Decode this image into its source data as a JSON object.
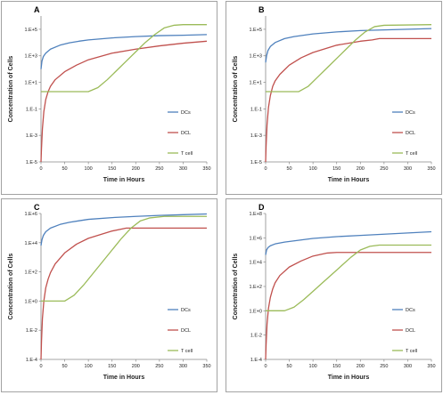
{
  "chart_data": [
    {
      "type": "line",
      "panel": "A",
      "xlabel": "Time in Hours",
      "ylabel": "Concentration of Cells",
      "y_scale": "log",
      "xlim": [
        0,
        350
      ],
      "ylim_exp": [
        -5,
        6
      ],
      "x_ticks": [
        "0",
        "50",
        "100",
        "150",
        "200",
        "250",
        "300",
        "350"
      ],
      "y_ticks": [
        "1.E-5",
        "1.E-3",
        "1.E-1",
        "1.E+1",
        "1.E+3",
        "1.E+5"
      ],
      "legend_position": "right",
      "series": [
        {
          "name": "DCs",
          "color": "#4f81bd",
          "points": [
            [
              0,
              2
            ],
            [
              2,
              2.6
            ],
            [
              5,
              2.95
            ],
            [
              10,
              3.2
            ],
            [
              20,
              3.5
            ],
            [
              40,
              3.8
            ],
            [
              60,
              3.98
            ],
            [
              80,
              4.1
            ],
            [
              100,
              4.2
            ],
            [
              150,
              4.35
            ],
            [
              200,
              4.45
            ],
            [
              250,
              4.52
            ],
            [
              300,
              4.55
            ],
            [
              350,
              4.6
            ]
          ]
        },
        {
          "name": "DCL",
          "color": "#c0504d",
          "points": [
            [
              0,
              -5
            ],
            [
              1,
              -4
            ],
            [
              3,
              -2.5
            ],
            [
              6,
              -1.2
            ],
            [
              10,
              -0.3
            ],
            [
              15,
              0.3
            ],
            [
              20,
              0.7
            ],
            [
              30,
              1.2
            ],
            [
              50,
              1.8
            ],
            [
              75,
              2.3
            ],
            [
              100,
              2.7
            ],
            [
              150,
              3.2
            ],
            [
              200,
              3.5
            ],
            [
              250,
              3.75
            ],
            [
              300,
              3.95
            ],
            [
              350,
              4.1
            ]
          ]
        },
        {
          "name": "T cell",
          "color": "#9bbb59",
          "points": [
            [
              0,
              0.3
            ],
            [
              100,
              0.3
            ],
            [
              120,
              0.6
            ],
            [
              140,
              1.2
            ],
            [
              160,
              1.9
            ],
            [
              180,
              2.6
            ],
            [
              200,
              3.3
            ],
            [
              220,
              4.0
            ],
            [
              240,
              4.6
            ],
            [
              260,
              5.1
            ],
            [
              280,
              5.3
            ],
            [
              300,
              5.35
            ],
            [
              350,
              5.35
            ]
          ]
        }
      ]
    },
    {
      "type": "line",
      "panel": "B",
      "xlabel": "Time in Hours",
      "ylabel": "Concentration of Cells",
      "y_scale": "log",
      "xlim": [
        0,
        350
      ],
      "ylim_exp": [
        -5,
        6
      ],
      "x_ticks": [
        "0",
        "50",
        "100",
        "150",
        "200",
        "250",
        "300",
        "350"
      ],
      "y_ticks": [
        "1.E-5",
        "1.E-3",
        "1.E-1",
        "1.E+1",
        "1.E+3",
        "1.E+5"
      ],
      "legend_position": "right",
      "series": [
        {
          "name": "DCs",
          "color": "#4f81bd",
          "points": [
            [
              0,
              2.5
            ],
            [
              2,
              3
            ],
            [
              5,
              3.4
            ],
            [
              10,
              3.7
            ],
            [
              20,
              4
            ],
            [
              40,
              4.3
            ],
            [
              60,
              4.45
            ],
            [
              80,
              4.55
            ],
            [
              100,
              4.65
            ],
            [
              150,
              4.8
            ],
            [
              200,
              4.9
            ],
            [
              250,
              4.95
            ],
            [
              300,
              5.0
            ],
            [
              350,
              5.05
            ]
          ]
        },
        {
          "name": "DCL",
          "color": "#c0504d",
          "points": [
            [
              0,
              -5
            ],
            [
              1,
              -3.8
            ],
            [
              3,
              -2.2
            ],
            [
              6,
              -0.9
            ],
            [
              10,
              0
            ],
            [
              15,
              0.7
            ],
            [
              20,
              1.1
            ],
            [
              30,
              1.6
            ],
            [
              50,
              2.3
            ],
            [
              75,
              2.85
            ],
            [
              100,
              3.25
            ],
            [
              150,
              3.8
            ],
            [
              200,
              4.1
            ],
            [
              225,
              4.2
            ],
            [
              240,
              4.3
            ],
            [
              350,
              4.3
            ]
          ]
        },
        {
          "name": "T cell",
          "color": "#9bbb59",
          "points": [
            [
              0,
              0.3
            ],
            [
              70,
              0.3
            ],
            [
              90,
              0.7
            ],
            [
              110,
              1.4
            ],
            [
              130,
              2.1
            ],
            [
              150,
              2.8
            ],
            [
              170,
              3.5
            ],
            [
              190,
              4.2
            ],
            [
              210,
              4.8
            ],
            [
              230,
              5.2
            ],
            [
              250,
              5.3
            ],
            [
              350,
              5.35
            ]
          ]
        }
      ]
    },
    {
      "type": "line",
      "panel": "C",
      "xlabel": "Time in Hours",
      "ylabel": "Concentration of Cells",
      "y_scale": "log",
      "xlim": [
        0,
        350
      ],
      "ylim_exp": [
        -4,
        6
      ],
      "x_ticks": [
        "0",
        "50",
        "100",
        "150",
        "200",
        "250",
        "300",
        "350"
      ],
      "y_ticks": [
        "1.E-4",
        "1.E-2",
        "1.E+0",
        "1.E+2",
        "1.E+4",
        "1.E+6"
      ],
      "legend_position": "right",
      "series": [
        {
          "name": "DCs",
          "color": "#4f81bd",
          "points": [
            [
              0,
              3.8
            ],
            [
              2,
              4.2
            ],
            [
              5,
              4.5
            ],
            [
              10,
              4.75
            ],
            [
              20,
              5
            ],
            [
              40,
              5.25
            ],
            [
              60,
              5.4
            ],
            [
              80,
              5.5
            ],
            [
              100,
              5.6
            ],
            [
              150,
              5.72
            ],
            [
              200,
              5.8
            ],
            [
              250,
              5.87
            ],
            [
              300,
              5.92
            ],
            [
              350,
              5.97
            ]
          ]
        },
        {
          "name": "DCL",
          "color": "#c0504d",
          "points": [
            [
              0,
              -4
            ],
            [
              1,
              -2.8
            ],
            [
              3,
              -1.2
            ],
            [
              6,
              0
            ],
            [
              10,
              0.9
            ],
            [
              15,
              1.5
            ],
            [
              20,
              1.95
            ],
            [
              30,
              2.55
            ],
            [
              50,
              3.3
            ],
            [
              75,
              3.9
            ],
            [
              100,
              4.3
            ],
            [
              150,
              4.8
            ],
            [
              180,
              5.0
            ],
            [
              200,
              5.0
            ],
            [
              350,
              5.0
            ]
          ]
        },
        {
          "name": "T cell",
          "color": "#9bbb59",
          "points": [
            [
              0,
              0
            ],
            [
              50,
              0
            ],
            [
              70,
              0.4
            ],
            [
              90,
              1.1
            ],
            [
              110,
              1.9
            ],
            [
              130,
              2.7
            ],
            [
              150,
              3.5
            ],
            [
              170,
              4.3
            ],
            [
              190,
              5.0
            ],
            [
              210,
              5.5
            ],
            [
              230,
              5.7
            ],
            [
              260,
              5.8
            ],
            [
              350,
              5.8
            ]
          ]
        }
      ]
    },
    {
      "type": "line",
      "panel": "D",
      "xlabel": "Time in Hours",
      "ylabel": "Concentration of Cells",
      "y_scale": "log",
      "xlim": [
        0,
        350
      ],
      "ylim_exp": [
        -4,
        8
      ],
      "x_ticks": [
        "0",
        "50",
        "100",
        "150",
        "200",
        "250",
        "300",
        "350"
      ],
      "y_ticks": [
        "1.E-4",
        "1.E-2",
        "1.E+0",
        "1.E+2",
        "1.E+4",
        "1.E+6",
        "1.E+8"
      ],
      "y_tick_labels_shown": [
        "1.E-4",
        "1.E-2",
        "1.E+0",
        "1.E+2",
        "1.E+4",
        "1.E+6",
        "1.E+8"
      ],
      "legend_position": "right",
      "series": [
        {
          "name": "DCs",
          "color": "#4f81bd",
          "points": [
            [
              0,
              4.6
            ],
            [
              2,
              5
            ],
            [
              5,
              5.2
            ],
            [
              10,
              5.35
            ],
            [
              20,
              5.5
            ],
            [
              40,
              5.65
            ],
            [
              60,
              5.75
            ],
            [
              80,
              5.85
            ],
            [
              100,
              5.95
            ],
            [
              150,
              6.1
            ],
            [
              200,
              6.2
            ],
            [
              250,
              6.3
            ],
            [
              300,
              6.4
            ],
            [
              350,
              6.5
            ]
          ]
        },
        {
          "name": "DCL",
          "color": "#c0504d",
          "points": [
            [
              0,
              -4
            ],
            [
              1,
              -2.8
            ],
            [
              3,
              -1.1
            ],
            [
              6,
              0.2
            ],
            [
              10,
              1.1
            ],
            [
              15,
              1.8
            ],
            [
              20,
              2.3
            ],
            [
              30,
              2.9
            ],
            [
              50,
              3.6
            ],
            [
              75,
              4.1
            ],
            [
              100,
              4.5
            ],
            [
              130,
              4.75
            ],
            [
              150,
              4.8
            ],
            [
              350,
              4.8
            ]
          ]
        },
        {
          "name": "T cell",
          "color": "#9bbb59",
          "points": [
            [
              0,
              0
            ],
            [
              40,
              0
            ],
            [
              60,
              0.3
            ],
            [
              80,
              0.9
            ],
            [
              100,
              1.6
            ],
            [
              120,
              2.3
            ],
            [
              140,
              3.0
            ],
            [
              160,
              3.7
            ],
            [
              180,
              4.4
            ],
            [
              200,
              5.0
            ],
            [
              220,
              5.3
            ],
            [
              240,
              5.4
            ],
            [
              350,
              5.4
            ]
          ]
        }
      ]
    }
  ]
}
